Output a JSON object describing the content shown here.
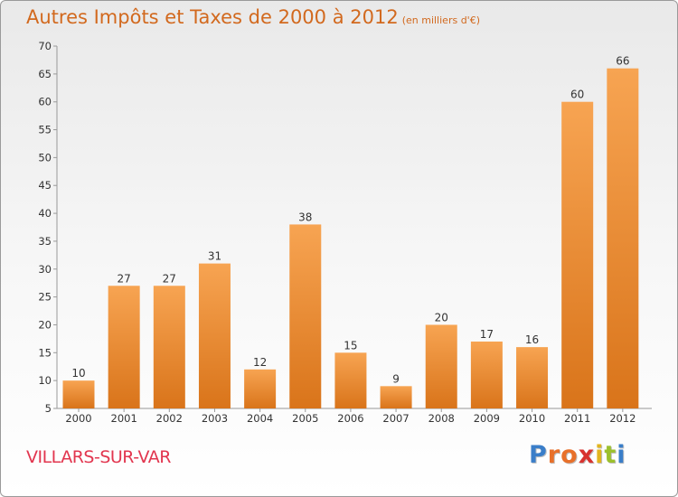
{
  "title": "Autres Impôts et Taxes de 2000 à 2012",
  "subtitle": "(en milliers d'€)",
  "commune": "VILLARS-SUR-VAR",
  "logo": {
    "letters": [
      "P",
      "r",
      "o",
      "x",
      "i",
      "t",
      "i"
    ],
    "colors": [
      "#3a7ec9",
      "#e8702a",
      "#e8702a",
      "#d8322f",
      "#e2b51e",
      "#9cc02d",
      "#3a7ec9"
    ]
  },
  "colors": {
    "bar_light": "#f7a452",
    "bar_dark": "#d9741a",
    "title": "#d2691e",
    "commune": "#e2364f"
  },
  "chart_data": {
    "type": "bar",
    "title": "Autres Impôts et Taxes de 2000 à 2012",
    "subtitle": "(en milliers d'€)",
    "categories": [
      "2000",
      "2001",
      "2002",
      "2003",
      "2004",
      "2005",
      "2006",
      "2007",
      "2008",
      "2009",
      "2010",
      "2011",
      "2012"
    ],
    "values": [
      10,
      27,
      27,
      31,
      12,
      38,
      15,
      9,
      20,
      17,
      16,
      60,
      66
    ],
    "ylim": [
      5,
      70
    ],
    "yticks": [
      5,
      10,
      15,
      20,
      25,
      30,
      35,
      40,
      45,
      50,
      55,
      60,
      65,
      70
    ],
    "grid": false,
    "legend": "none"
  }
}
